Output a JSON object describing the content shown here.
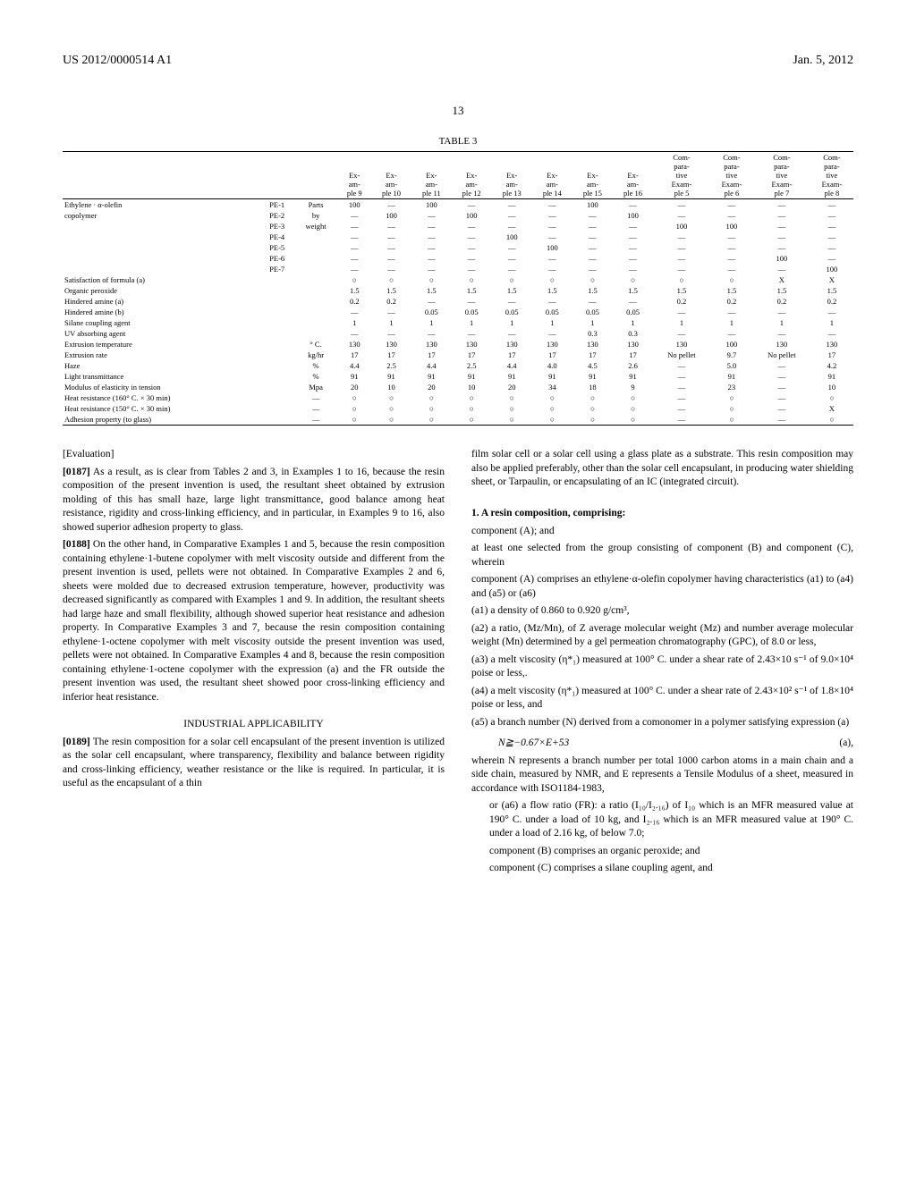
{
  "header": {
    "pub_num": "US 2012/0000514 A1",
    "date": "Jan. 5, 2012"
  },
  "page_num": "13",
  "table": {
    "caption": "TABLE 3",
    "col_headers": [
      "",
      "",
      "",
      "Ex-am-ple 9",
      "Ex-am-ple 10",
      "Ex-am-ple 11",
      "Ex-am-ple 12",
      "Ex-am-ple 13",
      "Ex-am-ple 14",
      "Ex-am-ple 15",
      "Ex-am-ple 16",
      "Com-para-tive Exam-ple 5",
      "Com-para-tive Exam-ple 6",
      "Com-para-tive Exam-ple 7",
      "Com-para-tive Exam-ple 8"
    ],
    "rows": [
      [
        "Ethylene · α-olefin",
        "PE-1",
        "Parts",
        "100",
        "—",
        "100",
        "—",
        "—",
        "—",
        "100",
        "—",
        "—",
        "—",
        "—",
        "—"
      ],
      [
        "copolymer",
        "PE-2",
        "by",
        "—",
        "100",
        "—",
        "100",
        "—",
        "—",
        "—",
        "100",
        "—",
        "—",
        "—",
        "—"
      ],
      [
        "",
        "PE-3",
        "weight",
        "—",
        "—",
        "—",
        "—",
        "—",
        "—",
        "—",
        "—",
        "100",
        "100",
        "—",
        "—"
      ],
      [
        "",
        "PE-4",
        "",
        "—",
        "—",
        "—",
        "—",
        "100",
        "—",
        "—",
        "—",
        "—",
        "—",
        "—",
        "—"
      ],
      [
        "",
        "PE-5",
        "",
        "—",
        "—",
        "—",
        "—",
        "—",
        "100",
        "—",
        "—",
        "—",
        "—",
        "—",
        "—"
      ],
      [
        "",
        "PE-6",
        "",
        "—",
        "—",
        "—",
        "—",
        "—",
        "—",
        "—",
        "—",
        "—",
        "—",
        "100",
        "—"
      ],
      [
        "",
        "PE-7",
        "",
        "—",
        "—",
        "—",
        "—",
        "—",
        "—",
        "—",
        "—",
        "—",
        "—",
        "—",
        "100"
      ],
      [
        "Satisfaction of formula (a)",
        "",
        "",
        "○",
        "○",
        "○",
        "○",
        "○",
        "○",
        "○",
        "○",
        "○",
        "○",
        "X",
        "X"
      ],
      [
        "Organic peroxide",
        "",
        "",
        "1.5",
        "1.5",
        "1.5",
        "1.5",
        "1.5",
        "1.5",
        "1.5",
        "1.5",
        "1.5",
        "1.5",
        "1.5",
        "1.5"
      ],
      [
        "Hindered amine (a)",
        "",
        "",
        "0.2",
        "0.2",
        "—",
        "—",
        "—",
        "—",
        "—",
        "—",
        "0.2",
        "0.2",
        "0.2",
        "0.2"
      ],
      [
        "Hindered amine (b)",
        "",
        "",
        "—",
        "—",
        "0.05",
        "0.05",
        "0.05",
        "0.05",
        "0.05",
        "0.05",
        "—",
        "—",
        "—",
        "—"
      ],
      [
        "Silane coupling agent",
        "",
        "",
        "1",
        "1",
        "1",
        "1",
        "1",
        "1",
        "1",
        "1",
        "1",
        "1",
        "1",
        "1"
      ],
      [
        "UV absorbing agent",
        "",
        "",
        "—",
        "—",
        "—",
        "—",
        "—",
        "—",
        "0.3",
        "0.3",
        "—",
        "—",
        "—",
        "—"
      ],
      [
        "Extrusion temperature",
        "",
        "° C.",
        "130",
        "130",
        "130",
        "130",
        "130",
        "130",
        "130",
        "130",
        "130",
        "100",
        "130",
        "130"
      ],
      [
        "Extrusion rate",
        "",
        "kg/hr",
        "17",
        "17",
        "17",
        "17",
        "17",
        "17",
        "17",
        "17",
        "No pellet",
        "9.7",
        "No pellet",
        "17"
      ],
      [
        "Haze",
        "",
        "%",
        "4.4",
        "2.5",
        "4.4",
        "2.5",
        "4.4",
        "4.0",
        "4.5",
        "2.6",
        "—",
        "5.0",
        "—",
        "4.2"
      ],
      [
        "Light transmittance",
        "",
        "%",
        "91",
        "91",
        "91",
        "91",
        "91",
        "91",
        "91",
        "91",
        "—",
        "91",
        "—",
        "91"
      ],
      [
        "Modulus of elasticity in tension",
        "",
        "Mpa",
        "20",
        "10",
        "20",
        "10",
        "20",
        "34",
        "18",
        "9",
        "—",
        "23",
        "—",
        "10"
      ],
      [
        "Heat resistance (160° C. × 30 min)",
        "",
        "—",
        "○",
        "○",
        "○",
        "○",
        "○",
        "○",
        "○",
        "○",
        "—",
        "○",
        "—",
        "○"
      ],
      [
        "Heat resistance (150° C. × 30 min)",
        "",
        "—",
        "○",
        "○",
        "○",
        "○",
        "○",
        "○",
        "○",
        "○",
        "—",
        "○",
        "—",
        "X"
      ],
      [
        "Adhesion property (to glass)",
        "",
        "—",
        "○",
        "○",
        "○",
        "○",
        "○",
        "○",
        "○",
        "○",
        "—",
        "○",
        "—",
        "○"
      ]
    ]
  },
  "left_col": {
    "eval_heading": "[Evaluation]",
    "p1_num": "[0187]",
    "p1": "As a result, as is clear from Tables 2 and 3, in Examples 1 to 16, because the resin composition of the present invention is used, the resultant sheet obtained by extrusion molding of this has small haze, large light transmit­tance, good balance among heat resistance, rigidity and cross-linking efficiency, and in particular, in Examples 9 to 16, also showed superior adhesion property to glass.",
    "p2_num": "[0188]",
    "p2": "On the other hand, in Comparative Examples 1 and 5, because the resin composition containing ethylene·1-butene copolymer with melt viscosity outside and different from the present invention is used, pellets were not obtained. In Comparative Examples 2 and 6, sheets were molded due to decreased extrusion temperature, however, productivity was decreased significantly as compared with Examples 1 and 9. In addition, the resultant sheets had large haze and small flexibility, although showed superior heat resistance and adhesion property. In Comparative Examples 3 and 7, because the resin composition containing ethylene·1-octene copolymer with melt viscosity outside the present invention was used, pellets were not obtained. In Comparative Examples 4 and 8, because the resin composition containing ethylene·1-octene copolymer with the expression (a) and the FR outside the present invention was used, the resultant sheet showed poor cross-linking efficiency and inferior heat resis­tance.",
    "section": "INDUSTRIAL APPLICABILITY",
    "p3_num": "[0189]",
    "p3": "The resin composition for a solar cell encapsulant of the present invention is utilized as the solar cell encapsulant, where transparency, flexibility and balance between rigidity and cross-linking efficiency, weather resistance or the like is required. In particular, it is useful as the encapsulant of a thin"
  },
  "right_col": {
    "p1": "film solar cell or a solar cell using a glass plate as a substrate. This resin composition may also be applied preferably, other than the solar cell encapsulant, in producing water shielding sheet, or Tarpaulin, or encapsulating of an IC (integrated circuit).",
    "claim1_lead": "1. A resin composition, comprising:",
    "l1": "component (A); and",
    "l2": "at least one selected from the group consisting of compo­nent (B) and component (C), wherein",
    "l3": "component (A) comprises an ethylene·α-olefin copolymer having characteristics (a1) to (a4) and (a5) or (a6)",
    "l4": "(a1) a density of 0.860 to 0.920 g/cm³,",
    "l5": "(a2) a ratio, (Mz/Mn), of Z average molecular weight (Mz) and number average molecular weight (Mn) determined by a gel permeation chromatography (GPC), of 8.0 or less,",
    "l6": "(a3) a melt viscosity (η*₁) measured at 100° C. under a shear rate of 2.43×10 s⁻¹ of 9.0×10⁴ poise or less,.",
    "l7": "(a4) a melt viscosity (η*₁) measured at 100° C. under a shear rate of 2.43×10² s⁻¹ of 1.8×10⁴ poise or less, and",
    "l8": "(a5) a branch number (N) derived from a comonomer in a polymer satisfying expression (a)",
    "formula": "N≧−0.67×E+53",
    "formula_label": "(a),",
    "l9": "wherein N represents a branch number per total 1000 carbon atoms in a main chain and a side chain, measured by NMR, and E represents a Tensile Modulus of a sheet, measured in accordance with ISO1184-1983,",
    "l10": "or (a6) a flow ratio (FR): a ratio (I₁₀/I₂.₁₆) of I₁₀ which is an MFR measured value at 190° C. under a load of 10 kg, and I₂.₁₆ which is an MFR measured value at 190° C. under a load of 2.16 kg, of below 7.0;",
    "l11": "component (B) comprises an organic peroxide; and",
    "l12": "component (C) comprises a silane coupling agent, and"
  }
}
